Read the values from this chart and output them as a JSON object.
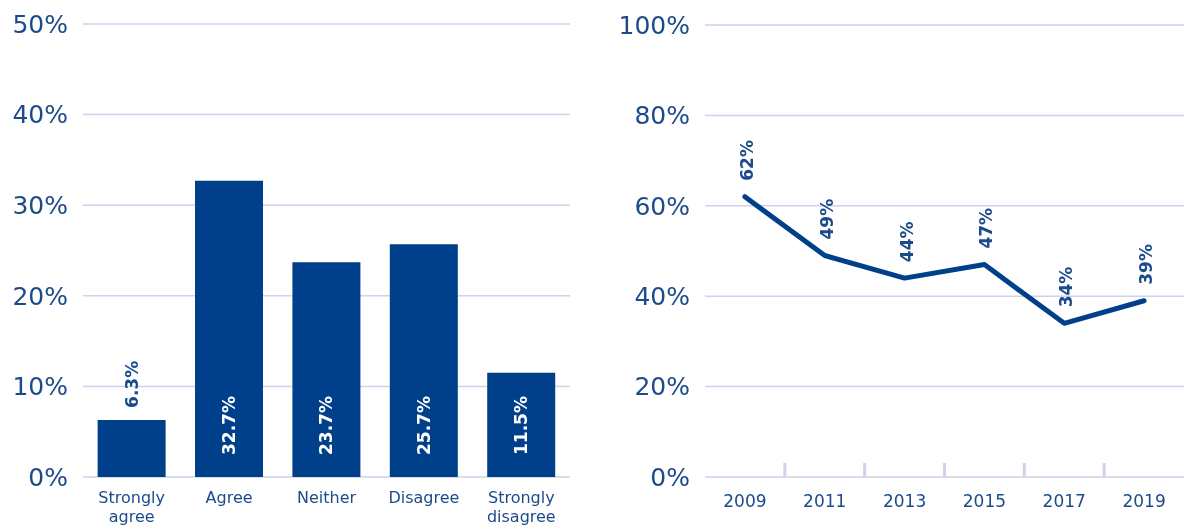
{
  "chart_data": [
    {
      "type": "bar",
      "categories": [
        "Strongly agree",
        "Agree",
        "Neither",
        "Disagree",
        "Strongly disagree"
      ],
      "values": [
        6.3,
        32.7,
        23.7,
        25.7,
        11.5
      ],
      "color": "#00408a",
      "value_labels": [
        "6.3%",
        "32.7%",
        "23.7%",
        "25.7%",
        "11.5%"
      ],
      "ylim": [
        0,
        50
      ],
      "yticks": [
        {
          "value": 0,
          "label": "0%"
        },
        {
          "value": 10,
          "label": "10%"
        },
        {
          "value": 20,
          "label": "20%"
        },
        {
          "value": 30,
          "label": "30%"
        },
        {
          "value": 40,
          "label": "40%"
        },
        {
          "value": 50,
          "label": "50%"
        }
      ],
      "grid": "y"
    },
    {
      "type": "line",
      "categories": [
        "2009",
        "2011",
        "2013",
        "2015",
        "2017",
        "2019"
      ],
      "values": [
        62,
        49,
        44,
        47,
        34,
        39
      ],
      "color": "#00408a",
      "value_labels": [
        "62%",
        "49%",
        "44%",
        "47%",
        "34%",
        "39%"
      ],
      "ylim": [
        0,
        100
      ],
      "yticks": [
        {
          "value": 0,
          "label": "0%"
        },
        {
          "value": 20,
          "label": "20%"
        },
        {
          "value": 40,
          "label": "40%"
        },
        {
          "value": 60,
          "label": "60%"
        },
        {
          "value": 80,
          "label": "80%"
        },
        {
          "value": 100,
          "label": "100%"
        }
      ],
      "grid": "y",
      "marker": "none"
    }
  ]
}
